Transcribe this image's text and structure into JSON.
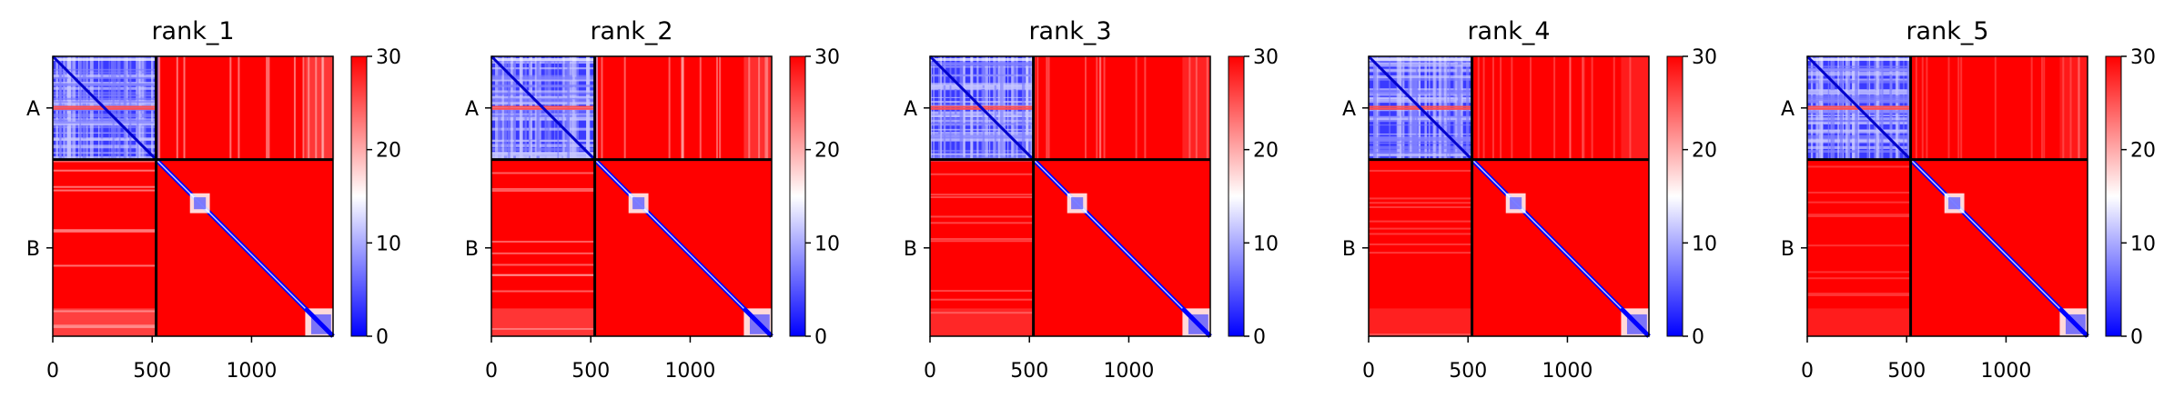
{
  "figure": {
    "colors": {
      "low": "#0000ff",
      "mid": "#ffffff",
      "high": "#ff0000",
      "divider": "#000000"
    }
  },
  "chart_data": [
    {
      "type": "heatmap",
      "title": "rank_1",
      "x_ticks": [
        0,
        500,
        1000
      ],
      "xlim": [
        0,
        1410
      ],
      "chains": [
        {
          "label": "A",
          "start": 0,
          "end": 520
        },
        {
          "label": "B",
          "start": 520,
          "end": 1410
        }
      ],
      "colorbar": {
        "min": 0,
        "max": 30,
        "ticks": [
          0,
          10,
          20,
          30
        ],
        "cmap": "bwr"
      },
      "variant": 0.9
    },
    {
      "type": "heatmap",
      "title": "rank_2",
      "x_ticks": [
        0,
        500,
        1000
      ],
      "xlim": [
        0,
        1410
      ],
      "chains": [
        {
          "label": "A",
          "start": 0,
          "end": 520
        },
        {
          "label": "B",
          "start": 520,
          "end": 1410
        }
      ],
      "colorbar": {
        "min": 0,
        "max": 30,
        "ticks": [
          0,
          10,
          20,
          30
        ],
        "cmap": "bwr"
      },
      "variant": 0.75
    },
    {
      "type": "heatmap",
      "title": "rank_3",
      "x_ticks": [
        0,
        500,
        1000
      ],
      "xlim": [
        0,
        1410
      ],
      "chains": [
        {
          "label": "A",
          "start": 0,
          "end": 520
        },
        {
          "label": "B",
          "start": 520,
          "end": 1410
        }
      ],
      "colorbar": {
        "min": 0,
        "max": 30,
        "ticks": [
          0,
          10,
          20,
          30
        ],
        "cmap": "bwr"
      },
      "variant": 0.55
    },
    {
      "type": "heatmap",
      "title": "rank_4",
      "x_ticks": [
        0,
        500,
        1000
      ],
      "xlim": [
        0,
        1410
      ],
      "chains": [
        {
          "label": "A",
          "start": 0,
          "end": 520
        },
        {
          "label": "B",
          "start": 520,
          "end": 1410
        }
      ],
      "colorbar": {
        "min": 0,
        "max": 30,
        "ticks": [
          0,
          10,
          20,
          30
        ],
        "cmap": "bwr"
      },
      "variant": 0.45
    },
    {
      "type": "heatmap",
      "title": "rank_5",
      "x_ticks": [
        0,
        500,
        1000
      ],
      "xlim": [
        0,
        1410
      ],
      "chains": [
        {
          "label": "A",
          "start": 0,
          "end": 520
        },
        {
          "label": "B",
          "start": 520,
          "end": 1410
        }
      ],
      "colorbar": {
        "min": 0,
        "max": 30,
        "ticks": [
          0,
          10,
          20,
          30
        ],
        "cmap": "bwr"
      },
      "variant": 0.4
    }
  ]
}
